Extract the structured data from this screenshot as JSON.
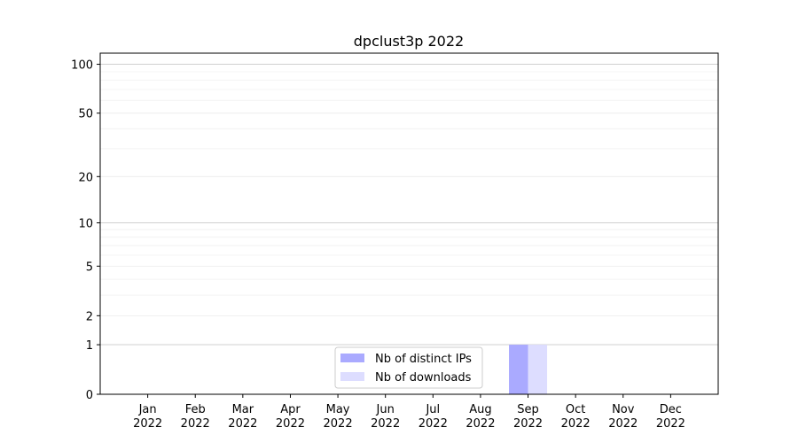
{
  "chart_data": {
    "type": "bar",
    "title": "dpclust3p 2022",
    "xlabel": "",
    "ylabel": "",
    "categories": [
      "Jan\n2022",
      "Feb\n2022",
      "Mar\n2022",
      "Apr\n2022",
      "May\n2022",
      "Jun\n2022",
      "Jul\n2022",
      "Aug\n2022",
      "Sep\n2022",
      "Oct\n2022",
      "Nov\n2022",
      "Dec\n2022"
    ],
    "y_scale": "symlog",
    "ylim": [
      0,
      117
    ],
    "y_ticks": [
      0,
      1,
      2,
      5,
      10,
      20,
      50,
      100
    ],
    "grid": true,
    "legend_position": "bottom-center",
    "series": [
      {
        "name": "Nb of distinct IPs",
        "color": "#aaaaff",
        "values": [
          0,
          0,
          0,
          0,
          0,
          0,
          0,
          0,
          1,
          0,
          0,
          0
        ]
      },
      {
        "name": "Nb of downloads",
        "color": "#ddddff",
        "values": [
          0,
          0,
          0,
          0,
          0,
          0,
          0,
          0,
          1,
          0,
          0,
          0
        ]
      }
    ]
  }
}
